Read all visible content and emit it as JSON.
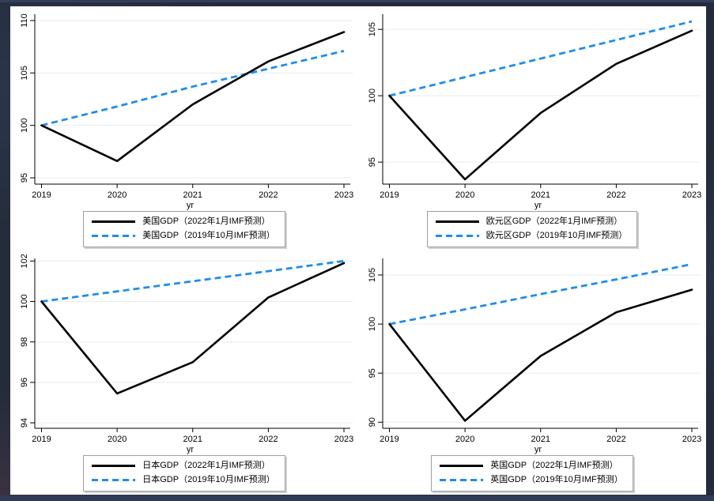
{
  "window": {
    "panel_background": "#ffffff",
    "desktop_background": "#242b3c",
    "bottom_strip_color": "#2f3b57"
  },
  "chart_defaults": {
    "grid_color": "#e3edf3",
    "axis_color": "#000000",
    "solid_color": "#000000",
    "dashed_color": "#1d8df2",
    "x_tick_labels": [
      "2019",
      "2020",
      "2021",
      "2022",
      "2023"
    ]
  },
  "chart_data": [
    {
      "type": "line",
      "key": "us",
      "region": "美国",
      "xlabel": "yr",
      "x": [
        2019,
        2020,
        2021,
        2022,
        2023
      ],
      "yticks": [
        95,
        100,
        105,
        110
      ],
      "ylim": [
        94.4,
        110.6
      ],
      "grid": true,
      "legend_position": "bottom",
      "series": [
        {
          "name": "美国GDP（2022年1月IMF预测）",
          "style": "solid",
          "color": "#000000",
          "values": [
            100,
            96.6,
            102.0,
            106.1,
            108.9
          ]
        },
        {
          "name": "美国GDP（2019年10月IMF预测）",
          "style": "dashed",
          "color": "#1d8df2",
          "values": [
            100,
            101.8,
            103.7,
            105.4,
            107.1
          ]
        }
      ]
    },
    {
      "type": "line",
      "key": "eurozone",
      "region": "欧元区",
      "xlabel": "yr",
      "x": [
        2019,
        2020,
        2021,
        2022,
        2023
      ],
      "yticks": [
        95,
        100,
        105
      ],
      "ylim": [
        93.34,
        106.14
      ],
      "grid": true,
      "legend_position": "bottom",
      "series": [
        {
          "name": "欧元区GDP（2022年1月IMF预测）",
          "style": "solid",
          "color": "#000000",
          "values": [
            100,
            93.7,
            98.7,
            102.4,
            104.9
          ]
        },
        {
          "name": "欧元区GDP（2019年10月IMF预测）",
          "style": "dashed",
          "color": "#1d8df2",
          "values": [
            100,
            101.4,
            102.8,
            104.2,
            105.6
          ]
        }
      ]
    },
    {
      "type": "line",
      "key": "japan",
      "region": "日本",
      "xlabel": "yr",
      "x": [
        2019,
        2020,
        2021,
        2022,
        2023
      ],
      "yticks": [
        94,
        96,
        98,
        100,
        102
      ],
      "ylim": [
        93.73,
        102.13
      ],
      "grid": true,
      "legend_position": "bottom",
      "series": [
        {
          "name": "日本GDP（2022年1月IMF预测）",
          "style": "solid",
          "color": "#000000",
          "values": [
            100,
            95.45,
            97.0,
            100.2,
            101.9
          ]
        },
        {
          "name": "日本GDP（2019年10月IMF预测）",
          "style": "dashed",
          "color": "#1d8df2",
          "values": [
            100,
            100.5,
            101.0,
            101.5,
            102.0
          ]
        }
      ]
    },
    {
      "type": "line",
      "key": "uk",
      "region": "英国",
      "xlabel": "yr",
      "x": [
        2019,
        2020,
        2021,
        2022,
        2023
      ],
      "yticks": [
        90,
        95,
        100,
        105
      ],
      "ylim": [
        89.38,
        106.69
      ],
      "grid": true,
      "legend_position": "bottom",
      "series": [
        {
          "name": "英国GDP（2022年1月IMF预测）",
          "style": "solid",
          "color": "#000000",
          "values": [
            100,
            90.15,
            96.75,
            101.2,
            103.5
          ]
        },
        {
          "name": "英国GDP（2019年10月IMF预测）",
          "style": "dashed",
          "color": "#1d8df2",
          "values": [
            100,
            101.5,
            103.05,
            104.55,
            106.1
          ]
        }
      ]
    }
  ]
}
